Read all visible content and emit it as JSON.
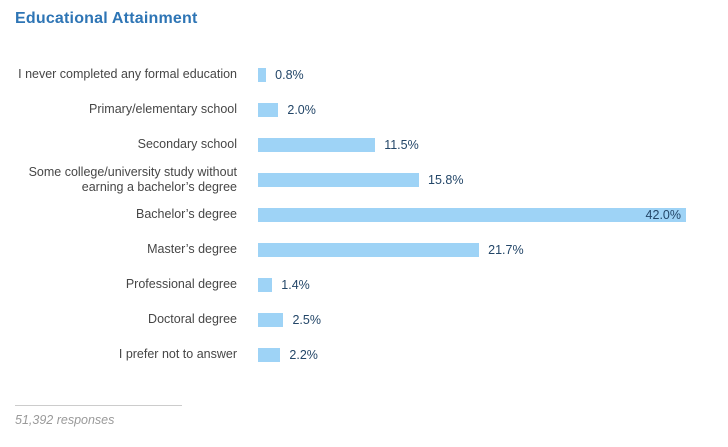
{
  "title": "Educational Attainment",
  "footer": {
    "responses": "51,392 responses"
  },
  "colors": {
    "title_color": "#2e75b5",
    "bar_color": "#9ed3f6",
    "value_color": "#234668",
    "label_color": "#464646",
    "footer_text_color": "#9a9a9a",
    "divider_color": "#cccccc"
  },
  "chart_data": {
    "type": "bar",
    "orientation": "horizontal",
    "title": "Educational Attainment",
    "categories": [
      "I never completed any formal education",
      "Primary/elementary school",
      "Secondary school",
      "Some college/university study without earning a bachelor’s degree",
      "Bachelor’s degree",
      "Master’s degree",
      "Professional degree",
      "Doctoral degree",
      "I prefer not to answer"
    ],
    "values": [
      0.8,
      2.0,
      11.5,
      15.8,
      42.0,
      21.7,
      1.4,
      2.5,
      2.2
    ],
    "value_labels": [
      "0.8%",
      "2.0%",
      "11.5%",
      "15.8%",
      "42.0%",
      "21.7%",
      "1.4%",
      "2.5%",
      "2.2%"
    ],
    "xlabel": "",
    "ylabel": "",
    "xlim": [
      0,
      42
    ],
    "grid": false,
    "legend": false,
    "axis_visible": false,
    "note": "51,392 responses"
  }
}
